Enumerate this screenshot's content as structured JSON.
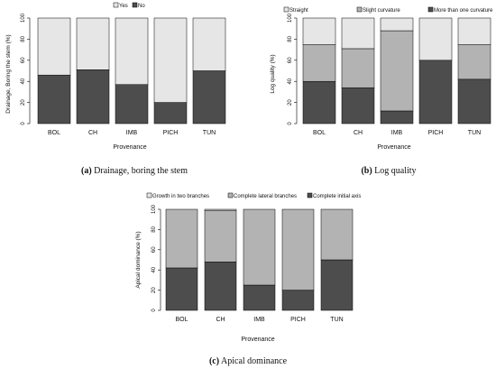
{
  "colors": {
    "light": "#e6e6e6",
    "medium": "#b3b3b3",
    "dark": "#4d4d4d",
    "stroke": "#000000"
  },
  "panels": [
    {
      "legend": [
        "Yes",
        "No"
      ],
      "ylabel": "Drainage, Boring the stem (%)",
      "xlabel": "Provenance",
      "caption_letter": "(a)",
      "caption_text": "Drainage, boring the stem"
    },
    {
      "legend": [
        "Straight",
        "Slight curvature",
        "More than one curvature"
      ],
      "ylabel": "Log quality (%)",
      "xlabel": "Provenance",
      "caption_letter": "(b)",
      "caption_text": "Log quality"
    },
    {
      "legend": [
        "Growth in two branches",
        "Complete lateral branches",
        "Complete initial axis"
      ],
      "ylabel": "Apical dominance (%)",
      "xlabel": "Provenance",
      "caption_letter": "(c)",
      "caption_text": "Apical dominance"
    }
  ],
  "chart_data": [
    {
      "type": "bar",
      "stacked": true,
      "categories": [
        "BOL",
        "CH",
        "IMB",
        "PICH",
        "TUN"
      ],
      "ylim": [
        0,
        100
      ],
      "yticks": [
        0,
        20,
        40,
        60,
        80,
        100
      ],
      "legend_position": "top",
      "series": [
        {
          "name": "No",
          "color": "dark",
          "values": [
            46,
            51,
            37,
            20,
            50
          ]
        },
        {
          "name": "Yes",
          "color": "light",
          "values": [
            54,
            49,
            63,
            80,
            50
          ]
        }
      ]
    },
    {
      "type": "bar",
      "stacked": true,
      "categories": [
        "BOL",
        "CH",
        "IMB",
        "PICH",
        "TUN"
      ],
      "ylim": [
        0,
        100
      ],
      "yticks": [
        0,
        20,
        40,
        60,
        80,
        100
      ],
      "legend_position": "top",
      "series": [
        {
          "name": "More than one curvature",
          "color": "dark",
          "values": [
            40,
            34,
            12,
            60,
            42
          ]
        },
        {
          "name": "Slight curvature",
          "color": "medium",
          "values": [
            35,
            37,
            76,
            0,
            33
          ]
        },
        {
          "name": "Straight",
          "color": "light",
          "values": [
            25,
            29,
            12,
            40,
            25
          ]
        }
      ]
    },
    {
      "type": "bar",
      "stacked": true,
      "categories": [
        "BOL",
        "CH",
        "IMB",
        "PICH",
        "TUN"
      ],
      "ylim": [
        0,
        100
      ],
      "yticks": [
        0,
        20,
        40,
        60,
        80,
        100
      ],
      "legend_position": "top",
      "series": [
        {
          "name": "Complete initial axis",
          "color": "dark",
          "values": [
            42,
            48,
            25,
            20,
            50
          ]
        },
        {
          "name": "Complete lateral branches",
          "color": "medium",
          "values": [
            58,
            51,
            75,
            80,
            50
          ]
        },
        {
          "name": "Growth in two branches",
          "color": "light",
          "values": [
            0,
            1,
            0,
            0,
            0
          ]
        }
      ]
    }
  ]
}
